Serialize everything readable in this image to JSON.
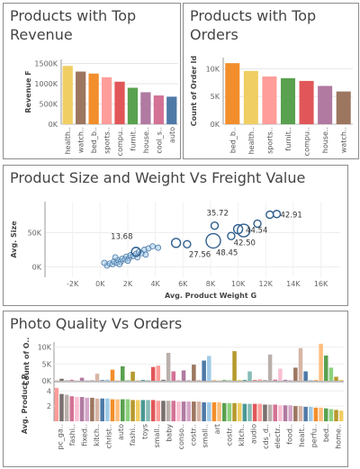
{
  "chart_data": [
    {
      "type": "bar",
      "title_lines": [
        "Products with Top",
        "Revenue"
      ],
      "ylabel": "Revenue F",
      "yticks": [
        "0K",
        "500K",
        "1000K",
        "1500K"
      ],
      "ylim": [
        0,
        1600000
      ],
      "categories": [
        "health..",
        "watch..",
        "bed_b..",
        "sports..",
        "compu..",
        "furnit..",
        "house..",
        "cool_s..",
        "auto"
      ],
      "values": [
        1440000,
        1300000,
        1250000,
        1160000,
        1050000,
        900000,
        790000,
        710000,
        680000
      ],
      "colors": [
        "#f1ce63",
        "#9d7660",
        "#f28e2b",
        "#ff9d9a",
        "#e15759",
        "#59a14f",
        "#b07aa1",
        "#d37295",
        "#4e79a7"
      ]
    },
    {
      "type": "bar",
      "title_lines": [
        "Products with Top",
        "Orders"
      ],
      "ylabel": "Count of Order Id",
      "yticks": [
        "0K",
        "5K",
        "10K"
      ],
      "ylim": [
        0,
        12000
      ],
      "categories": [
        "bed_b..",
        "health..",
        "sports..",
        "furnit..",
        "compu..",
        "house..",
        "watch.."
      ],
      "values": [
        11000,
        9600,
        8600,
        8300,
        7800,
        6900,
        5900
      ],
      "colors": [
        "#f28e2b",
        "#f1ce63",
        "#ff9d9a",
        "#59a14f",
        "#e15759",
        "#b07aa1",
        "#9d7660"
      ]
    },
    {
      "type": "scatter",
      "title": "Product Size and Weight Vs Freight Value",
      "xlabel": "Avg. Product Weight G",
      "ylabel": "Avg. Size",
      "xticks": [
        "-2K",
        "0K",
        "2K",
        "4K",
        "6K",
        "8K",
        "10K",
        "12K",
        "14K",
        "16K"
      ],
      "xlim": [
        -4000,
        17400
      ],
      "yticks": [
        "0K",
        "50K"
      ],
      "ylim": [
        -15000,
        95000
      ],
      "points": [
        {
          "x": 500,
          "y": 2000,
          "r": 3
        },
        {
          "x": 700,
          "y": 5000,
          "r": 3
        },
        {
          "x": 900,
          "y": 4000,
          "r": 3
        },
        {
          "x": 1000,
          "y": 8000,
          "r": 3
        },
        {
          "x": 1200,
          "y": 6000,
          "r": 3
        },
        {
          "x": 1300,
          "y": 10000,
          "r": 3
        },
        {
          "x": 1500,
          "y": 8000,
          "r": 3
        },
        {
          "x": 1600,
          "y": 12000,
          "r": 3
        },
        {
          "x": 1800,
          "y": 11000,
          "r": 3
        },
        {
          "x": 1900,
          "y": 15000,
          "r": 3
        },
        {
          "x": 2100,
          "y": 13000,
          "r": 3
        },
        {
          "x": 2200,
          "y": 17000,
          "r": 3
        },
        {
          "x": 2400,
          "y": 16000,
          "r": 3
        },
        {
          "x": 2600,
          "y": 19000,
          "r": 3
        },
        {
          "x": 2800,
          "y": 22000,
          "r": 3
        },
        {
          "x": 3000,
          "y": 20000,
          "r": 3
        },
        {
          "x": 3200,
          "y": 25000,
          "r": 3
        },
        {
          "x": 3500,
          "y": 27000,
          "r": 3
        },
        {
          "x": 3800,
          "y": 30000,
          "r": 3
        },
        {
          "x": 4200,
          "y": 28000,
          "r": 3
        },
        {
          "x": 1100,
          "y": 14000,
          "r": 3
        },
        {
          "x": 2000,
          "y": 9000,
          "r": 3
        },
        {
          "x": 2700,
          "y": 14000,
          "r": 3
        },
        {
          "x": 300,
          "y": 6000,
          "r": 3
        },
        {
          "x": 1400,
          "y": 4000,
          "r": 3
        },
        {
          "x": 3300,
          "y": 18000,
          "r": 3
        },
        {
          "x": 2600,
          "y": 22000,
          "r": 5,
          "label": "13.68",
          "lx": -28,
          "ly": -14
        },
        {
          "x": 5500,
          "y": 35000,
          "r": 5
        },
        {
          "x": 6300,
          "y": 33000,
          "r": 4,
          "label": "27.56",
          "lx": 2,
          "ly": 14
        },
        {
          "x": 8200,
          "y": 38000,
          "r": 8,
          "label": "48.45",
          "lx": 3,
          "ly": 16
        },
        {
          "x": 8300,
          "y": 60000,
          "r": 4,
          "label": "35.72",
          "lx": -9,
          "ly": -11
        },
        {
          "x": 9500,
          "y": 45000,
          "r": 4
        },
        {
          "x": 10000,
          "y": 55000,
          "r": 5,
          "label": "42.50",
          "lx": -5,
          "ly": 18
        },
        {
          "x": 10400,
          "y": 53000,
          "r": 7
        },
        {
          "x": 11400,
          "y": 63000,
          "r": 4,
          "label": "44.54",
          "lx": -13,
          "ly": 10
        },
        {
          "x": 12300,
          "y": 76000,
          "r": 4
        },
        {
          "x": 12800,
          "y": 77000,
          "r": 4,
          "label": "42.91",
          "lx": 4,
          "ly": 4
        }
      ]
    },
    {
      "type": "bar",
      "title": "Photo Quality Vs Orders",
      "top_ylabel": "Count of O..",
      "top_yticks": [
        "0K",
        "5K",
        "10K"
      ],
      "top_ylim": [
        0,
        11500
      ],
      "bottom_ylabel": "Avg. Product P..",
      "bottom_yticks": [
        "2",
        "4"
      ],
      "bottom_ylim": [
        0,
        5.1
      ],
      "visible_categories": [
        "pc_ga..",
        "fashi..",
        "fixed..",
        "kitch..",
        "christ..",
        "auto",
        "fashi..",
        "toys",
        "small..",
        "baby",
        "conso..",
        "costr..",
        "small..",
        "art",
        "costr..",
        "kitch..",
        "audio",
        "cds_d..",
        "electr..",
        "food..",
        "healt..",
        "perfu..",
        "bed..",
        "home.."
      ],
      "order_counts": [
        120,
        600,
        180,
        300,
        90,
        900,
        150,
        120,
        2100,
        200,
        350,
        3300,
        120,
        4300,
        200,
        2700,
        150,
        250,
        180,
        4100,
        4500,
        300,
        8300,
        2800,
        300,
        3100,
        200,
        4800,
        250,
        6000,
        7400,
        150,
        120,
        200,
        180,
        8800,
        300,
        250,
        2800,
        200,
        400,
        150,
        7800,
        350,
        3600,
        300,
        200,
        3900,
        9700,
        2800,
        250,
        200,
        11000,
        7500,
        3900,
        1200,
        300
      ],
      "avg_photos": [
        4.4,
        3.6,
        3.5,
        3.3,
        3.2,
        3.2,
        3.1,
        3.1,
        3.0,
        3.0,
        3.0,
        2.9,
        2.9,
        2.9,
        2.9,
        2.8,
        2.8,
        2.8,
        2.8,
        2.8,
        2.7,
        2.7,
        2.7,
        2.7,
        2.6,
        2.6,
        2.6,
        2.6,
        2.6,
        2.5,
        2.5,
        2.5,
        2.5,
        2.4,
        2.4,
        2.4,
        2.4,
        2.3,
        2.3,
        2.3,
        2.3,
        2.2,
        2.2,
        2.2,
        2.1,
        2.1,
        2.1,
        2.0,
        2.0,
        1.9,
        1.9,
        1.8,
        1.8,
        1.7,
        1.6,
        1.5,
        1.4
      ],
      "palette": [
        "#ff9d9a",
        "#79706e",
        "#bab0ac",
        "#d37295",
        "#fabfd2",
        "#b07aa1",
        "#d4a6c8",
        "#9d7660",
        "#d7b5a6",
        "#4e79a7",
        "#a0cbe8",
        "#f28e2b",
        "#ffbe7d",
        "#59a14f",
        "#8cd17d",
        "#b6992d",
        "#f1ce63",
        "#499894",
        "#86bcb6",
        "#e15759"
      ]
    }
  ]
}
